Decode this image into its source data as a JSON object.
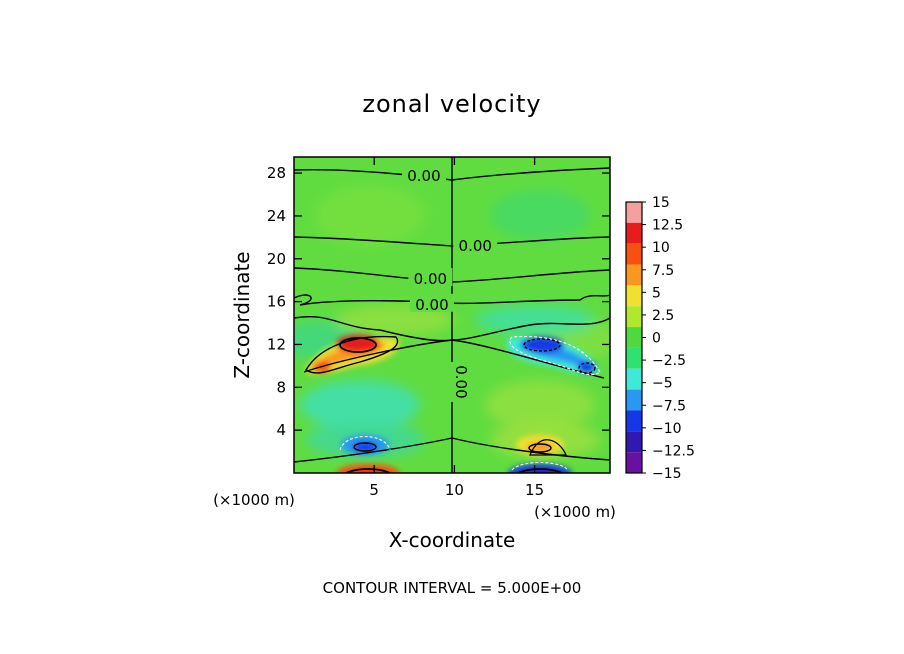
{
  "chart_data": {
    "type": "heatmap",
    "title": "zonal velocity",
    "xlabel": "X-coordinate",
    "ylabel": "Z-coordinate",
    "x_unit_label": "(×1000 m)",
    "y_unit_label": "(×1000 m)",
    "xlim": [
      0,
      19.7
    ],
    "ylim": [
      0,
      29.5
    ],
    "x_ticks": [
      5,
      10,
      15
    ],
    "y_ticks": [
      4,
      8,
      12,
      16,
      20,
      24,
      28
    ],
    "footer": "CONTOUR INTERVAL = 5.000E+00",
    "colorbar": {
      "levels": [
        15,
        12.5,
        10,
        7.5,
        5,
        2.5,
        0,
        -2.5,
        -5,
        -7.5,
        -10,
        -12.5,
        -15
      ],
      "labels": [
        "15",
        "12.5",
        "10",
        "7.5",
        "5",
        "2.5",
        "0",
        "−2.5",
        "−5",
        "−7.5",
        "−10",
        "−12.5",
        "−15"
      ],
      "colors": [
        "#f4a0a0",
        "#e81c1c",
        "#f85010",
        "#f89820",
        "#f0e030",
        "#b0e830",
        "#50d840",
        "#30e070",
        "#40e8d8",
        "#2898f0",
        "#1438e8",
        "#3018b0",
        "#6810a0"
      ]
    },
    "contour_labels": [
      {
        "text": "0.00",
        "x": 8.1,
        "z": 27.8
      },
      {
        "text": "0.00",
        "x": 11.3,
        "z": 21.3
      },
      {
        "text": "0.00",
        "x": 8.5,
        "z": 18.2
      },
      {
        "text": "0.00",
        "x": 8.6,
        "z": 15.8
      },
      {
        "text": "0.00",
        "x": 9.8,
        "z": 8.5,
        "vertical": true
      }
    ],
    "extrema": [
      {
        "x": 4.0,
        "z": 11.7,
        "value": 12.5,
        "sign": "positive"
      },
      {
        "x": 1.6,
        "z": 9.8,
        "value": 7.5,
        "sign": "positive"
      },
      {
        "x": 15.6,
        "z": 12.0,
        "value": -10,
        "sign": "negative"
      },
      {
        "x": 18.2,
        "z": 10.2,
        "value": -7.5,
        "sign": "negative"
      },
      {
        "x": 4.5,
        "z": 2.3,
        "value": -7.5,
        "sign": "negative"
      },
      {
        "x": 15.6,
        "z": 2.2,
        "value": 7.5,
        "sign": "positive"
      },
      {
        "x": 4.5,
        "z": 0.3,
        "value": 12.5,
        "sign": "positive"
      },
      {
        "x": 15.6,
        "z": 0.3,
        "value": -12.5,
        "sign": "negative"
      }
    ]
  }
}
